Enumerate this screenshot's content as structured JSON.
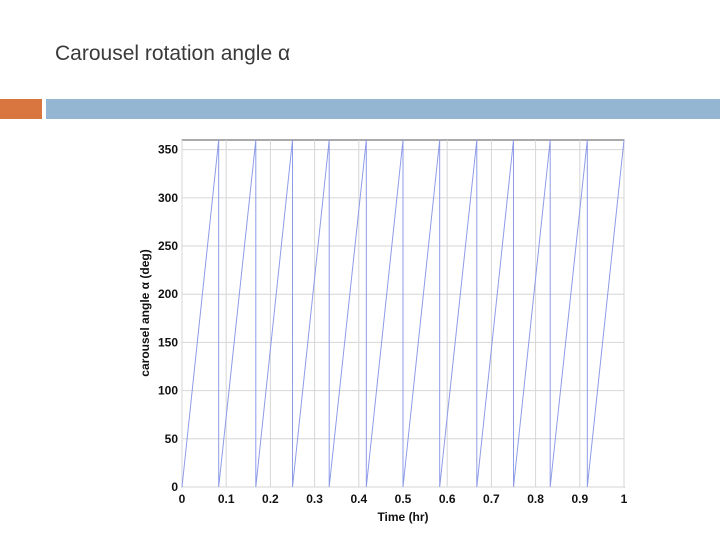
{
  "slide": {
    "title": "Carousel rotation angle α",
    "accent_left_color": "#d9763f",
    "accent_right_color": "#94b6d2"
  },
  "chart_data": {
    "type": "line",
    "title": "",
    "xlabel": "Time (hr)",
    "ylabel": "carousel angle α (deg)",
    "xlim": [
      0,
      1
    ],
    "ylim": [
      0,
      360
    ],
    "xticks": [
      "0",
      "0.1",
      "0.2",
      "0.3",
      "0.4",
      "0.5",
      "0.6",
      "0.7",
      "0.8",
      "0.9",
      "1"
    ],
    "yticks": [
      "0",
      "50",
      "100",
      "150",
      "200",
      "250",
      "300",
      "350"
    ],
    "grid": true,
    "line_color": "#8e9be8",
    "series": [
      {
        "name": "",
        "x": [
          0,
          0.083,
          0.083,
          0.167,
          0.167,
          0.25,
          0.25,
          0.333,
          0.333,
          0.417,
          0.417,
          0.5,
          0.5,
          0.583,
          0.583,
          0.667,
          0.667,
          0.75,
          0.75,
          0.833,
          0.833,
          0.917,
          0.917,
          1.0
        ],
        "y": [
          0,
          360,
          0,
          360,
          0,
          360,
          0,
          360,
          0,
          360,
          0,
          360,
          0,
          360,
          0,
          360,
          0,
          360,
          0,
          360,
          0,
          360,
          0,
          360
        ]
      }
    ]
  }
}
